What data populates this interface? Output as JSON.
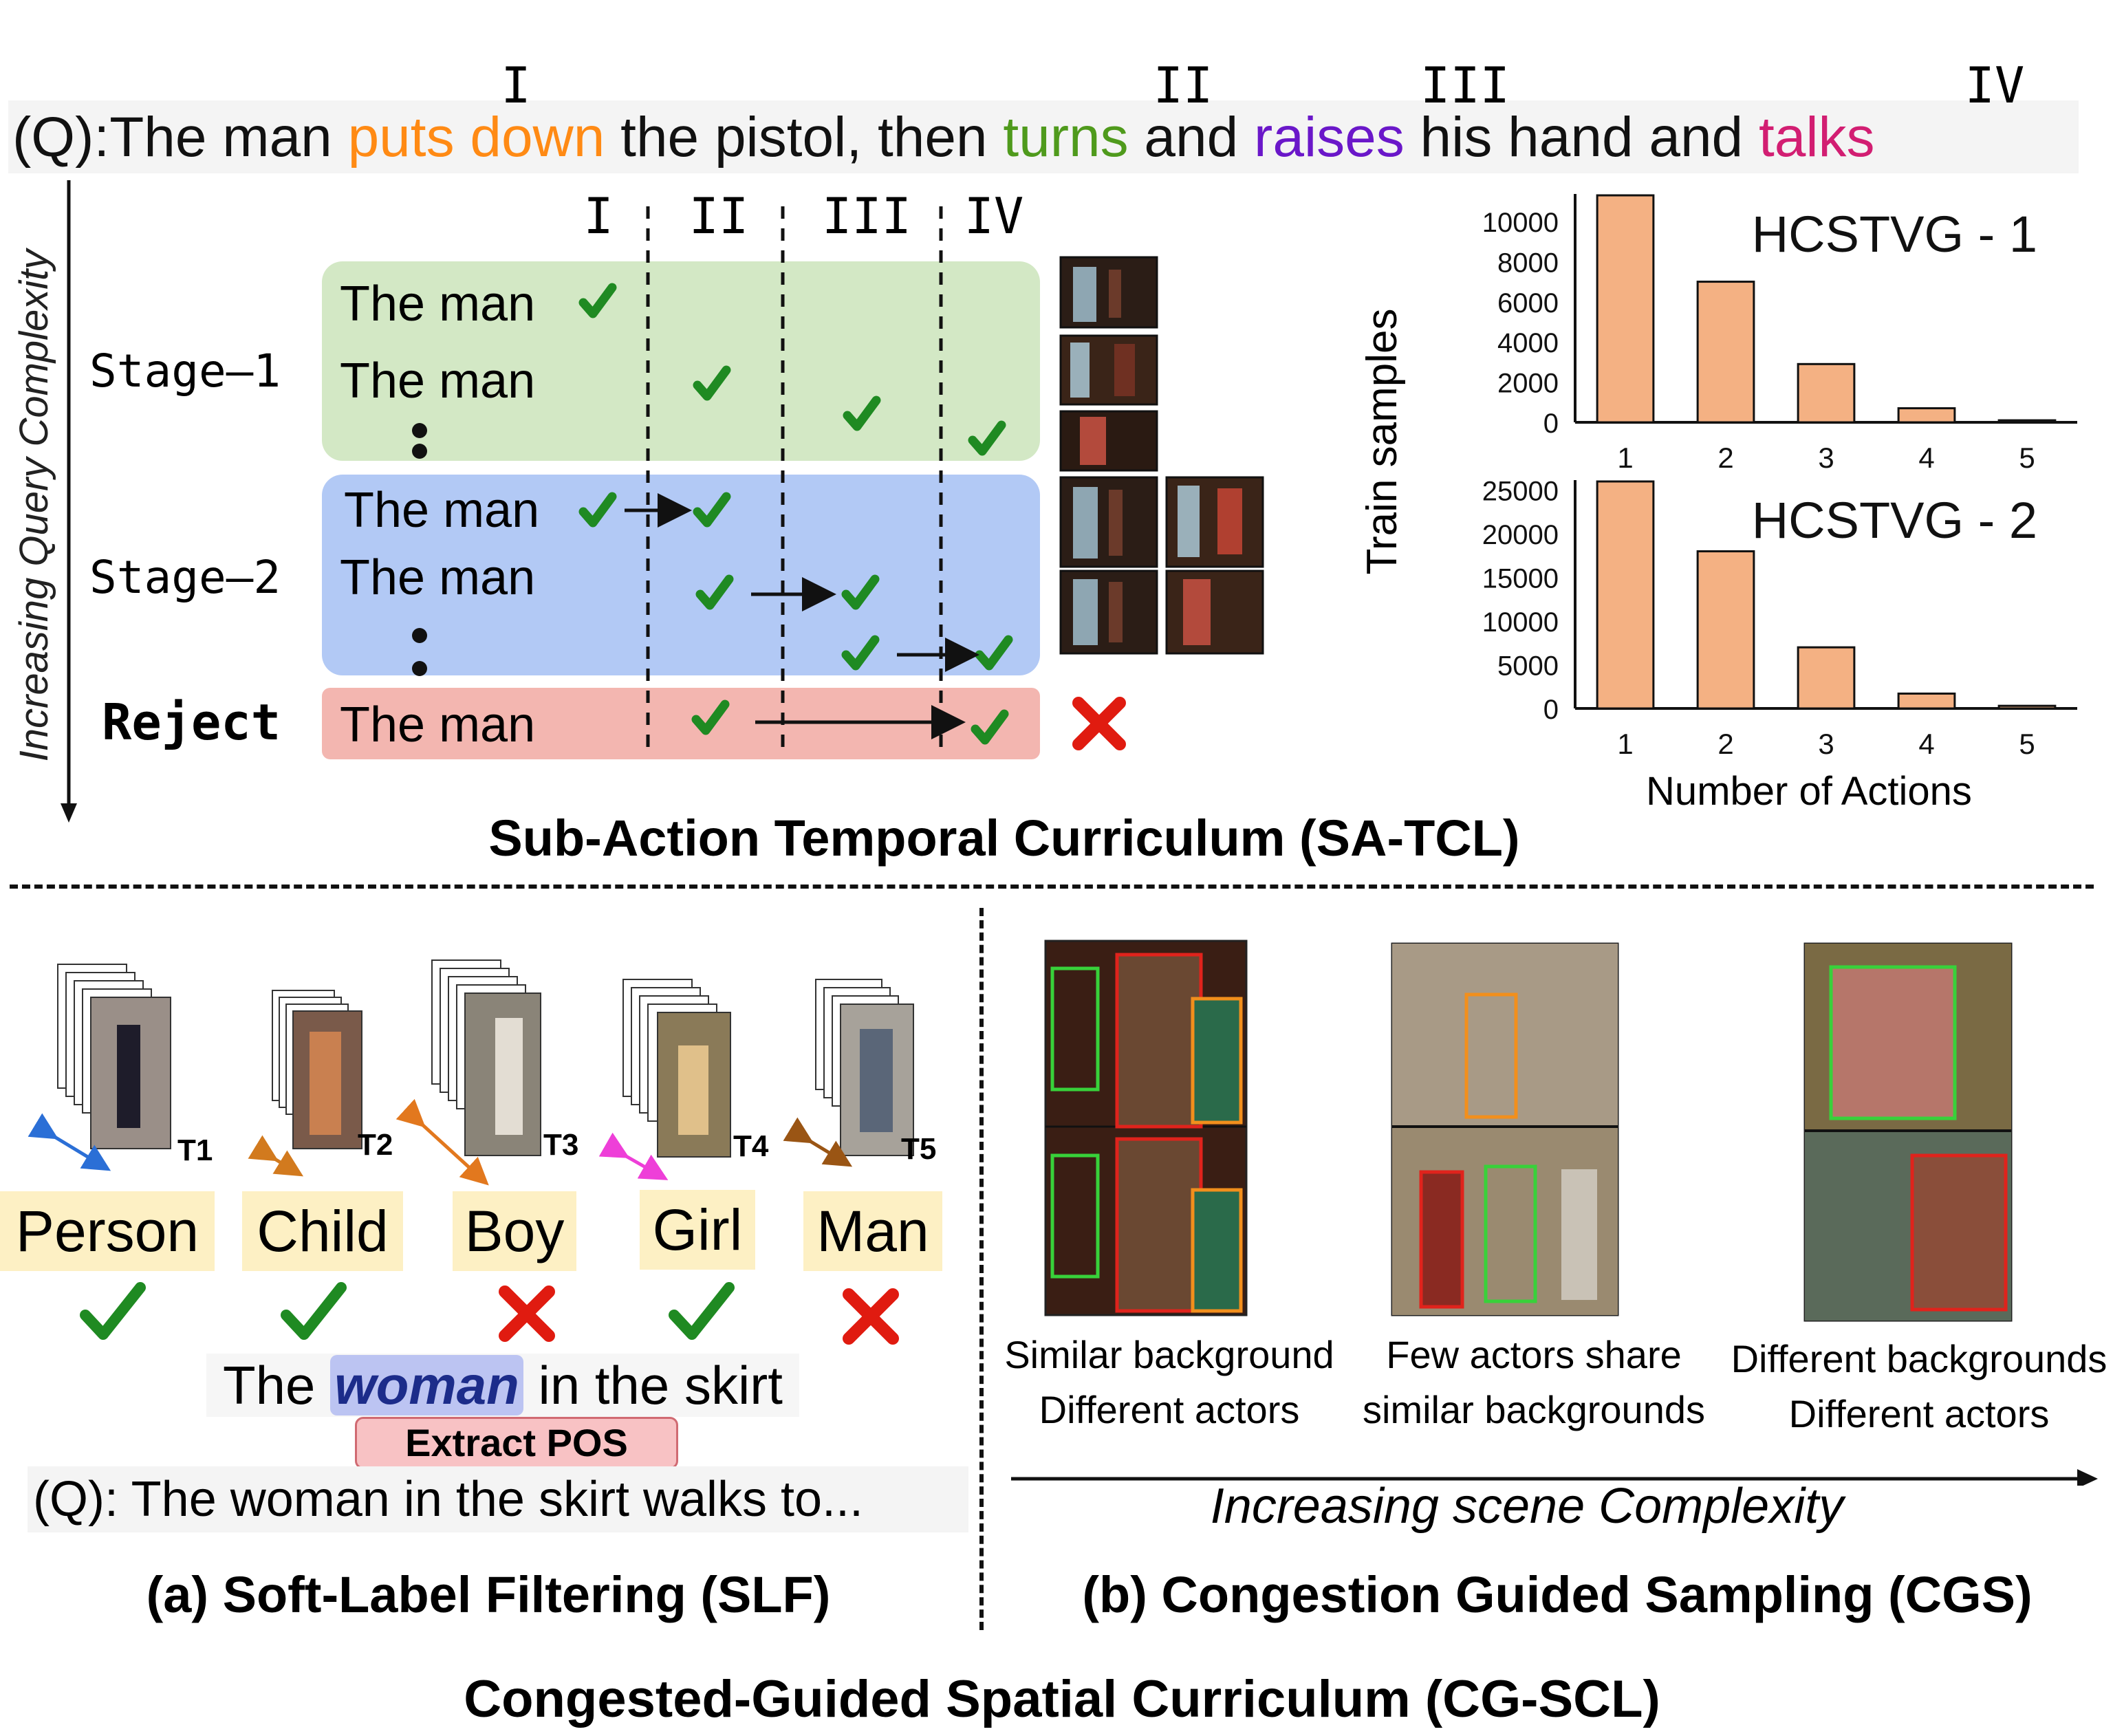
{
  "query": {
    "prefix": "(Q):",
    "parts": [
      {
        "text": "The man ",
        "color": "#111111"
      },
      {
        "text": "puts down",
        "color": "#ff8a14"
      },
      {
        "text": " the pistol, then ",
        "color": "#111111"
      },
      {
        "text": "turns",
        "color": "#4f9a1c"
      },
      {
        "text": " and ",
        "color": "#111111"
      },
      {
        "text": "raises",
        "color": "#6a17c9"
      },
      {
        "text": " his hand and ",
        "color": "#111111"
      },
      {
        "text": "talks",
        "color": "#d21e72"
      }
    ],
    "markers": [
      "I",
      "II",
      "III",
      "IV"
    ]
  },
  "sa_tcl": {
    "y_axis_label": "Increasing Query Complexity",
    "column_headers": [
      "I",
      "II",
      "III",
      "IV"
    ],
    "stage1_label": "Stage–1",
    "stage2_label": "Stage–2",
    "reject_label": "Reject",
    "row_text": "The man",
    "title": "Sub-Action Temporal Curriculum (SA-TCL)",
    "colors": {
      "stage1": "#d3e8c5",
      "stage2": "#b2c9f5",
      "reject": "#f3b6b0",
      "check": "#1f8a22",
      "cross": "#e01b10"
    }
  },
  "charts": {
    "ylabel": "Train samples",
    "xlabel": "Number of Actions"
  },
  "chart_data": [
    {
      "type": "bar",
      "title": "HCSTVG - 1",
      "categories": [
        "1",
        "2",
        "3",
        "4",
        "5"
      ],
      "values": [
        11300,
        7000,
        2900,
        700,
        100
      ],
      "ylim": [
        0,
        11300
      ],
      "yticks": [
        0,
        2000,
        4000,
        6000,
        8000,
        10000
      ],
      "ylabel": "Train samples",
      "xlabel": "",
      "bar_color": "#f4b183"
    },
    {
      "type": "bar",
      "title": "HCSTVG - 2",
      "categories": [
        "1",
        "2",
        "3",
        "4",
        "5"
      ],
      "values": [
        26000,
        18000,
        7000,
        1700,
        300
      ],
      "ylim": [
        0,
        26000
      ],
      "yticks": [
        0,
        5000,
        10000,
        15000,
        20000,
        25000
      ],
      "ylabel": "Train samples",
      "xlabel": "Number of Actions",
      "bar_color": "#f4b183"
    }
  ],
  "slf": {
    "tracks": [
      "T1",
      "T2",
      "T3",
      "T4",
      "T5"
    ],
    "labels": [
      "Person",
      "Child",
      "Boy",
      "Girl",
      "Man"
    ],
    "marks": [
      "check",
      "check",
      "cross",
      "check",
      "cross"
    ],
    "sentence_before": "The ",
    "sentence_highlight": "woman",
    "sentence_after": " in the skirt",
    "extract_label": "Extract POS",
    "query": "(Q): The woman in the skirt walks to...",
    "title": "(a) Soft-Label Filtering (SLF)"
  },
  "cgs": {
    "captions": [
      [
        "Similar background",
        "Different actors"
      ],
      [
        "Few actors share",
        "similar backgrounds"
      ],
      [
        "Different backgrounds",
        "Different actors"
      ]
    ],
    "axis_label": "Increasing scene Complexity",
    "title": "(b) Congestion Guided Sampling (CGS)"
  },
  "footer": {
    "title": "Congested-Guided Spatial Curriculum (CG-SCL)"
  }
}
